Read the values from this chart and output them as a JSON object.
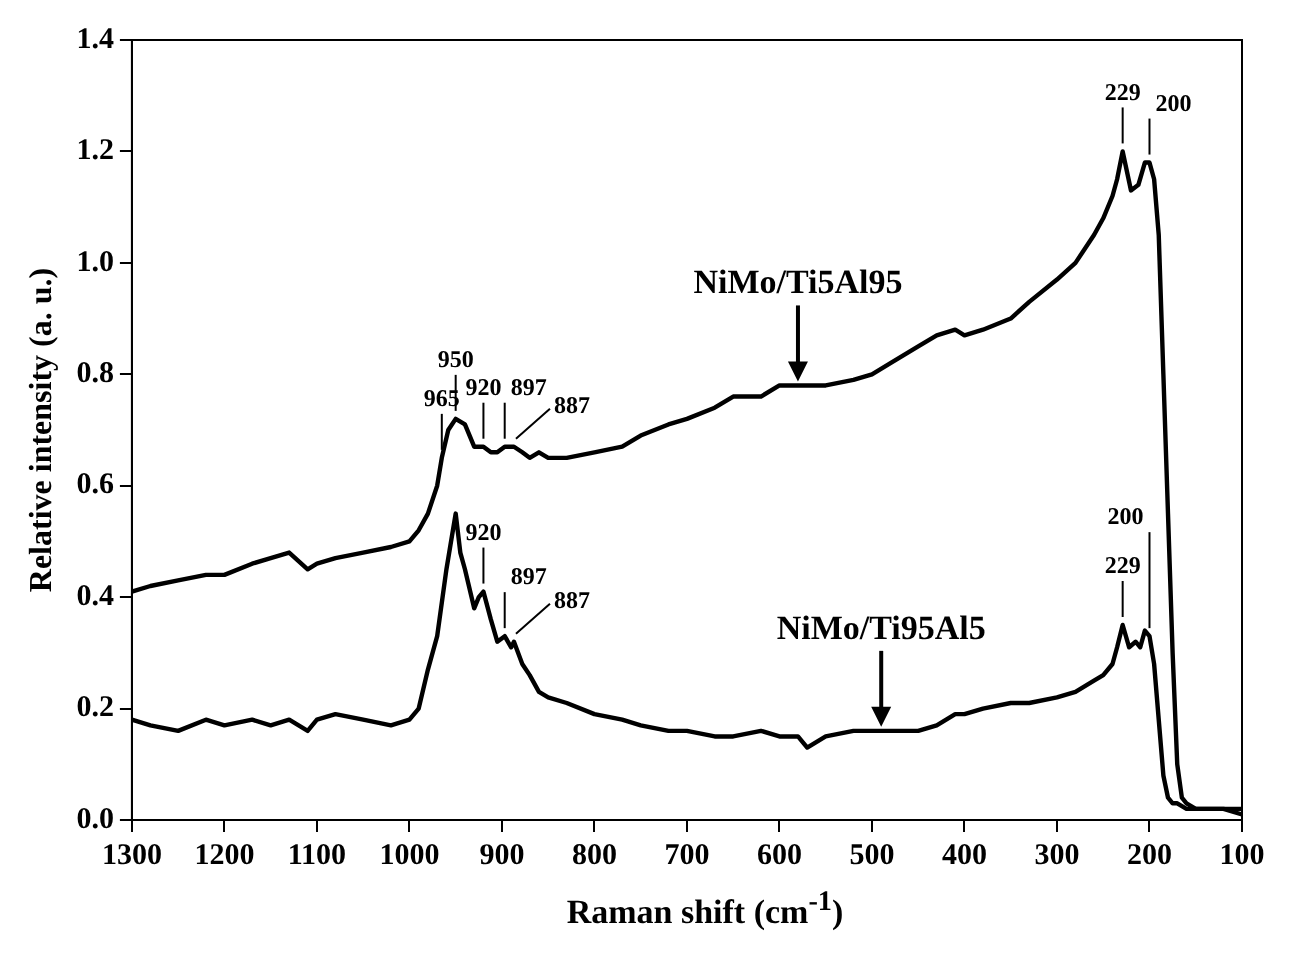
{
  "chart_data": {
    "type": "line",
    "xlabel": "Raman shift (cm$^{-1}$)",
    "ylabel": "Relative intensity (a. u.)",
    "xlim": [
      1300,
      100
    ],
    "xticks": [
      1300,
      1200,
      1100,
      1000,
      900,
      800,
      700,
      600,
      500,
      400,
      300,
      200,
      100
    ],
    "ylim": [
      0,
      1.4
    ],
    "yticks": [
      {
        "value": 0,
        "label": "0.0"
      },
      0.2,
      0.4,
      0.6,
      0.8,
      {
        "value": 1,
        "label": "1.0"
      },
      1.2,
      1.4
    ],
    "grid": false,
    "legend": false,
    "marker": "none",
    "line_style": "solid",
    "series": [
      {
        "color": "#000000",
        "x": [
          1300,
          1280,
          1250,
          1220,
          1200,
          1170,
          1150,
          1130,
          1110,
          1100,
          1080,
          1050,
          1020,
          1000,
          990,
          980,
          970,
          965,
          958,
          950,
          940,
          930,
          920,
          912,
          905,
          897,
          887,
          878,
          870,
          860,
          850,
          830,
          800,
          770,
          750,
          720,
          700,
          670,
          650,
          620,
          600,
          580,
          550,
          520,
          500,
          480,
          450,
          430,
          410,
          400,
          380,
          350,
          330,
          300,
          280,
          260,
          250,
          240,
          235,
          229,
          220,
          212,
          205,
          200,
          195,
          190,
          185,
          180,
          175,
          170,
          165,
          160,
          150,
          140,
          130,
          120,
          110,
          100
        ],
        "values": [
          0.41,
          0.42,
          0.43,
          0.44,
          0.44,
          0.46,
          0.47,
          0.48,
          0.45,
          0.46,
          0.47,
          0.48,
          0.49,
          0.5,
          0.52,
          0.55,
          0.6,
          0.65,
          0.7,
          0.72,
          0.71,
          0.67,
          0.67,
          0.66,
          0.66,
          0.67,
          0.67,
          0.66,
          0.65,
          0.66,
          0.65,
          0.65,
          0.66,
          0.67,
          0.69,
          0.71,
          0.72,
          0.74,
          0.76,
          0.76,
          0.78,
          0.78,
          0.78,
          0.79,
          0.8,
          0.82,
          0.85,
          0.87,
          0.88,
          0.87,
          0.88,
          0.9,
          0.93,
          0.97,
          1.0,
          1.05,
          1.08,
          1.12,
          1.15,
          1.2,
          1.13,
          1.14,
          1.18,
          1.18,
          1.15,
          1.05,
          0.8,
          0.55,
          0.3,
          0.1,
          0.04,
          0.03,
          0.02,
          0.02,
          0.02,
          0.02,
          0.02,
          0.02
        ]
      },
      {
        "color": "#000000",
        "x": [
          1300,
          1280,
          1250,
          1220,
          1200,
          1170,
          1150,
          1130,
          1110,
          1100,
          1080,
          1050,
          1020,
          1000,
          990,
          980,
          970,
          960,
          955,
          950,
          945,
          940,
          930,
          925,
          920,
          912,
          905,
          897,
          890,
          887,
          878,
          870,
          860,
          850,
          830,
          800,
          770,
          750,
          720,
          700,
          670,
          650,
          620,
          600,
          580,
          570,
          550,
          520,
          500,
          480,
          450,
          430,
          410,
          400,
          380,
          350,
          330,
          300,
          280,
          260,
          250,
          240,
          235,
          229,
          222,
          215,
          210,
          205,
          200,
          195,
          190,
          185,
          180,
          175,
          170,
          160,
          150,
          140,
          120,
          100
        ],
        "values": [
          0.18,
          0.17,
          0.16,
          0.18,
          0.17,
          0.18,
          0.17,
          0.18,
          0.16,
          0.18,
          0.19,
          0.18,
          0.17,
          0.18,
          0.2,
          0.27,
          0.33,
          0.45,
          0.5,
          0.55,
          0.48,
          0.45,
          0.38,
          0.4,
          0.41,
          0.36,
          0.32,
          0.33,
          0.31,
          0.32,
          0.28,
          0.26,
          0.23,
          0.22,
          0.21,
          0.19,
          0.18,
          0.17,
          0.16,
          0.16,
          0.15,
          0.15,
          0.16,
          0.15,
          0.15,
          0.13,
          0.15,
          0.16,
          0.16,
          0.16,
          0.16,
          0.17,
          0.19,
          0.19,
          0.2,
          0.21,
          0.21,
          0.22,
          0.23,
          0.25,
          0.26,
          0.28,
          0.31,
          0.35,
          0.31,
          0.32,
          0.31,
          0.34,
          0.33,
          0.28,
          0.18,
          0.08,
          0.04,
          0.03,
          0.03,
          0.02,
          0.02,
          0.02,
          0.02,
          0.01
        ]
      }
    ],
    "annotations": [
      {
        "text": "965",
        "x": 965,
        "y": 0.65
      },
      {
        "text": "950",
        "x": 950,
        "y": 0.72
      },
      {
        "text": "920",
        "x": 920,
        "y": 0.67
      },
      {
        "text": "897",
        "x": 897,
        "y": 0.67
      },
      {
        "text": "887",
        "x": 887,
        "y": 0.67
      },
      {
        "text": "229",
        "x": 229,
        "y": 1.2
      },
      {
        "text": "200",
        "x": 200,
        "y": 1.18
      },
      {
        "text": "920",
        "x": 920,
        "y": 0.41
      },
      {
        "text": "897",
        "x": 897,
        "y": 0.33
      },
      {
        "text": "887",
        "x": 887,
        "y": 0.32
      },
      {
        "text": "229",
        "x": 229,
        "y": 0.35
      },
      {
        "text": "200",
        "x": 200,
        "y": 0.33
      },
      {
        "text": "NiMo/Ti5Al95",
        "x": 580,
        "y": 0.78
      },
      {
        "text": "NiMo/Ti95Al5",
        "x": 490,
        "y": 0.16
      }
    ]
  }
}
